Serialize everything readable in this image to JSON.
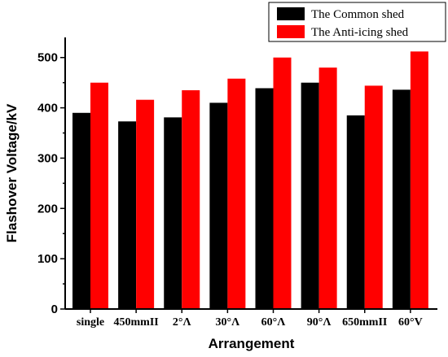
{
  "chart_data": {
    "type": "bar",
    "categories": [
      "single",
      "450mmII",
      "2°Λ",
      "30°Λ",
      "60°Λ",
      "90°Λ",
      "650mmII",
      "60°V"
    ],
    "series": [
      {
        "name": "The Common shed",
        "color": "#000000",
        "values": [
          390,
          373,
          381,
          410,
          439,
          450,
          385,
          436
        ]
      },
      {
        "name": "The Anti-icing shed",
        "color": "#ff0000",
        "values": [
          450,
          416,
          435,
          458,
          500,
          480,
          444,
          512
        ]
      }
    ],
    "xlabel": "Arrangement",
    "ylabel": "Flashover Voltage/kV",
    "ylim": [
      0,
      540
    ],
    "yticks": [
      0,
      100,
      200,
      300,
      400,
      500
    ],
    "legend_position": "top-right",
    "grid": false
  }
}
